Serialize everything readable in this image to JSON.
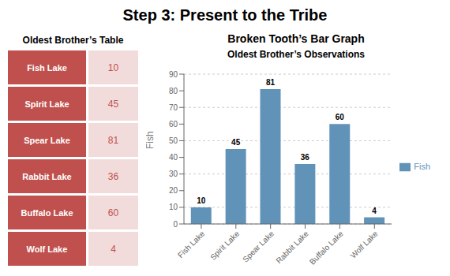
{
  "title": "Step 3: Present to the Tribe",
  "chart_data": [
    {
      "type": "table",
      "title": "Oldest Brother’s Table",
      "categories": [
        "Fish Lake",
        "Spirit Lake",
        "Spear Lake",
        "Rabbit Lake",
        "Buffalo Lake",
        "Wolf Lake"
      ],
      "values": [
        10,
        45,
        81,
        36,
        60,
        4
      ],
      "color": "#C0504D"
    },
    {
      "type": "bar",
      "title": "Broken Tooth’s Bar Graph",
      "subtitle": "Oldest Brother’s Observations",
      "ylabel": "Fish",
      "categories": [
        "Fish Lake",
        "Spirit Lake",
        "Spear Lake",
        "Rabbit Lake",
        "Buffalo Lake",
        "Wolf Lake"
      ],
      "series": [
        {
          "name": "Fish",
          "color": "#6193B8",
          "values": [
            10,
            45,
            81,
            36,
            60,
            4
          ]
        }
      ],
      "ylim": [
        0,
        90
      ],
      "yticks": [
        0,
        10,
        20,
        30,
        40,
        50,
        60,
        70,
        80,
        90
      ],
      "grid": true,
      "legend": "right",
      "data_labels": true
    }
  ]
}
